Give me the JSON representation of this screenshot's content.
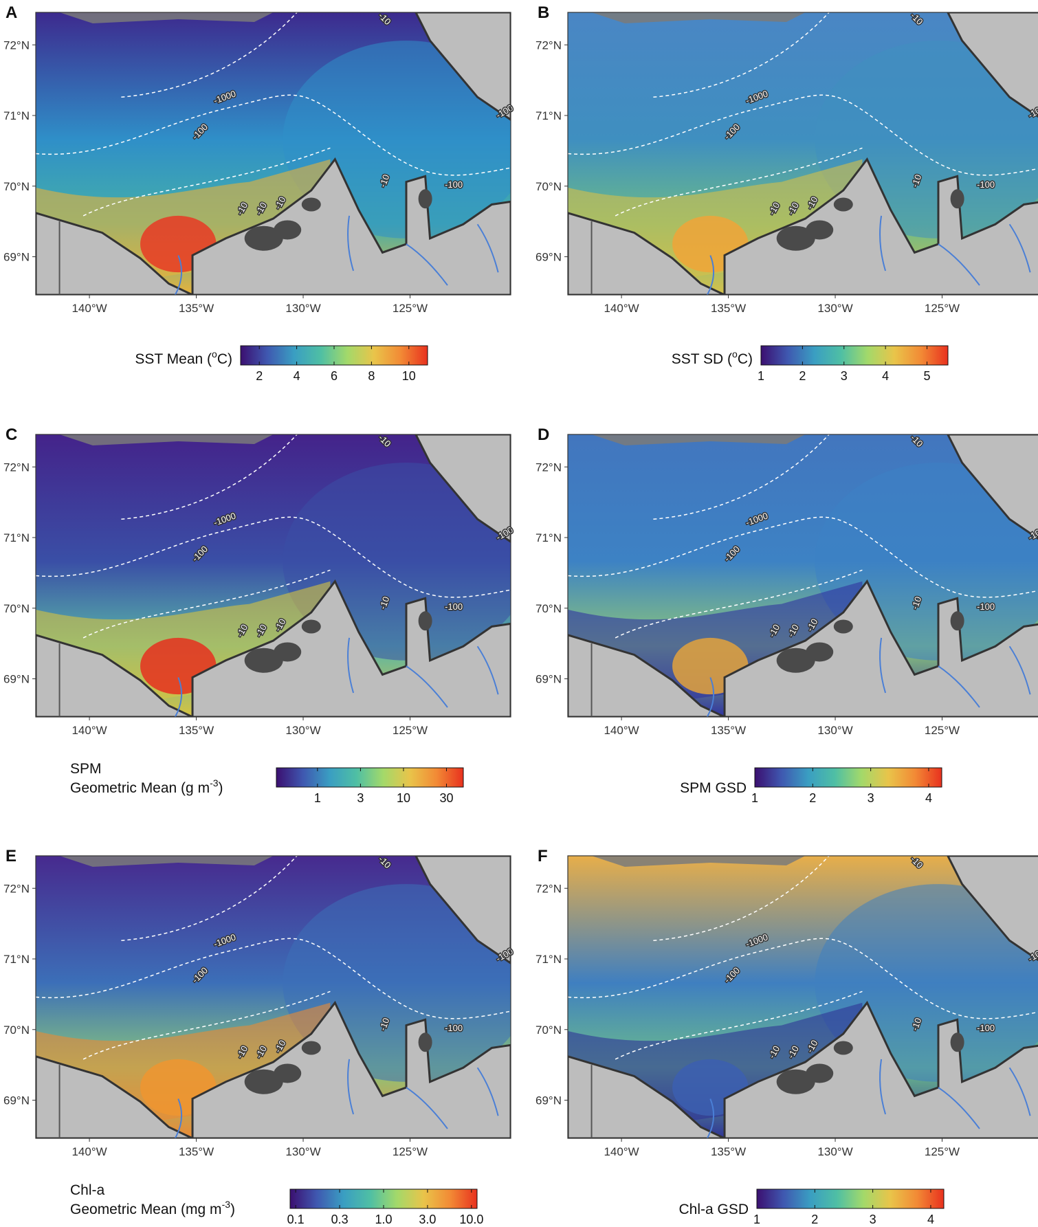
{
  "panels": [
    {
      "letter": "A",
      "legend_title_lines": [
        "SST Mean (",
        "o",
        "C)"
      ],
      "legend_layout": "sup",
      "legend_ticks": [
        "2",
        "4",
        "6",
        "8",
        "10"
      ],
      "field": {
        "base": "#2f8fc8",
        "north": "#3d2a8e",
        "shelf": "#46b0a8",
        "coast": "#e8b23a",
        "delta": "#e83a24"
      }
    },
    {
      "letter": "B",
      "legend_title_lines": [
        "SST SD (",
        "o",
        "C)"
      ],
      "legend_layout": "sup",
      "legend_ticks": [
        "1",
        "2",
        "3",
        "4",
        "5"
      ],
      "field": {
        "base": "#3f8fc0",
        "north": "#4a86c4",
        "shelf": "#6cbb88",
        "coast": "#d6c04a",
        "delta": "#f0a438"
      }
    },
    {
      "letter": "C",
      "legend_title_lines": [
        "SPM",
        "Geometric Mean (g m",
        "-3",
        ")"
      ],
      "legend_layout": "two-line",
      "legend_ticks": [
        "1",
        "3",
        "10",
        "30"
      ],
      "field": {
        "base": "#3a4fa6",
        "north": "#44238a",
        "shelf": "#59b6a8",
        "coast": "#d7c340",
        "delta": "#e6301f"
      }
    },
    {
      "letter": "D",
      "legend_title_lines": [
        "SPM GSD"
      ],
      "legend_layout": "plain",
      "legend_ticks": [
        "1",
        "2",
        "3",
        "4"
      ],
      "field": {
        "base": "#3d82c4",
        "north": "#4276be",
        "shelf": "#8cc67a",
        "coast": "#3034a0",
        "delta": "#e3a23c"
      }
    },
    {
      "letter": "E",
      "legend_title_lines": [
        "Chl-a",
        "Geometric Mean (mg m",
        "-3",
        ")"
      ],
      "legend_layout": "two-line",
      "legend_ticks": [
        "0.1",
        "0.3",
        "1.0",
        "3.0",
        "10.0"
      ],
      "field": {
        "base": "#3c6fb8",
        "north": "#472a8e",
        "shelf": "#8ac67c",
        "coast": "#eb8a34",
        "delta": "#ef9530"
      }
    },
    {
      "letter": "F",
      "legend_title_lines": [
        "Chl-a GSD"
      ],
      "legend_layout": "plain",
      "legend_ticks": [
        "1",
        "2",
        "3",
        "4"
      ],
      "field": {
        "base": "#3f7fc0",
        "north": "#e7ae4a",
        "shelf": "#6cbc8c",
        "coast": "#2f3496",
        "delta": "#3c5fb0"
      }
    }
  ],
  "x_ticks": [
    "140°W",
    "135°W",
    "130°W",
    "125°W"
  ],
  "y_ticks": [
    "72°N",
    "71°N",
    "70°N",
    "69°N"
  ],
  "contour_labels": [
    "-1000",
    "-100",
    "-10",
    "-10",
    "-100",
    "-10",
    "-10",
    "-100",
    "-10"
  ],
  "colors": {
    "land": "#bdbdbd",
    "island": "#4a4a4a",
    "coastline": "#333333",
    "river": "#4a7fd6",
    "contour": "#ffffff",
    "ice": "#7a7a7a",
    "colormap": [
      "#3b0f70",
      "#3f58b0",
      "#3a9ec2",
      "#4fbfa4",
      "#a3d96a",
      "#e9c44a",
      "#f28a35",
      "#e8311e"
    ]
  }
}
